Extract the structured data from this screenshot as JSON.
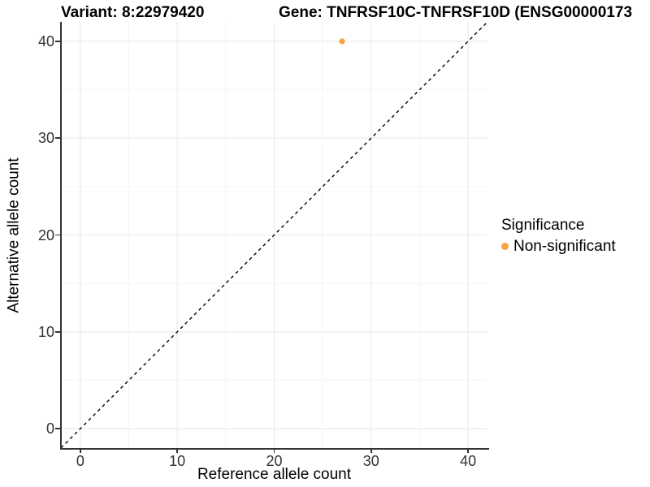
{
  "chart_data": {
    "type": "scatter",
    "title_left": "Variant: 8:22979420",
    "title_right": "Gene: TNFRSF10C-TNFRSF10D (ENSG00000173",
    "xlabel": "Reference allele count",
    "ylabel": "Alternative allele count",
    "xlim": [
      -2,
      42
    ],
    "ylim": [
      -2,
      42
    ],
    "x_ticks": [
      0,
      10,
      20,
      30,
      40
    ],
    "y_ticks": [
      0,
      10,
      20,
      30,
      40
    ],
    "x_minor_ticks": [
      5,
      15,
      25,
      35
    ],
    "y_minor_ticks": [
      5,
      15,
      25,
      35
    ],
    "grid": true,
    "series": [
      {
        "name": "Non-significant",
        "color": "#F9A243",
        "points": [
          {
            "x": 27,
            "y": 40
          }
        ]
      }
    ],
    "reference_line": {
      "type": "identity",
      "slope": 1,
      "intercept": 0,
      "style": "dashed",
      "color": "#000000"
    },
    "legend": {
      "title": "Significance",
      "position": "right",
      "entries": [
        {
          "label": "Non-significant",
          "color": "#F9A243"
        }
      ]
    },
    "colors": {
      "axis_line": "#333333",
      "tick_label": "#333333",
      "grid_major": "#e8e8e8",
      "grid_minor": "#f4f4f4",
      "background": "#ffffff"
    }
  }
}
